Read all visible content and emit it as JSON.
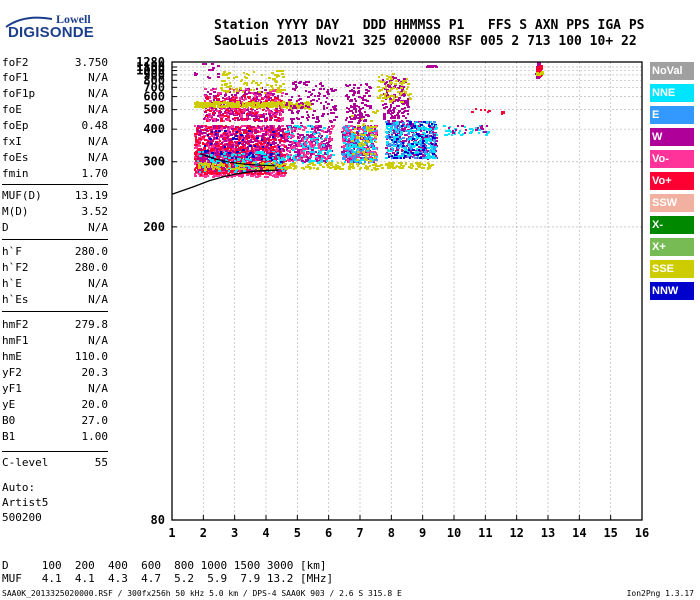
{
  "logo": {
    "line1": "Lowell",
    "line2": "DIGISONDE"
  },
  "header": {
    "labels": "Station YYYY DAY   DDD HHMMSS P1   FFS S AXN PPS IGA PS",
    "values": "SaoLuis 2013 Nov21 325 020000 RSF 005 2 713 100 10+ 22"
  },
  "params": [
    {
      "key": "foF2",
      "value": "3.750"
    },
    {
      "key": "foF1",
      "value": "N/A"
    },
    {
      "key": "foF1p",
      "value": "N/A"
    },
    {
      "key": "foE",
      "value": "N/A"
    },
    {
      "key": "foEp",
      "value": "0.48"
    },
    {
      "key": "fxI",
      "value": "N/A"
    },
    {
      "key": "foEs",
      "value": "N/A"
    },
    {
      "key": "fmin",
      "value": "1.70"
    },
    {
      "key": "MUF(D)",
      "value": "13.19"
    },
    {
      "key": "M(D)",
      "value": "3.52"
    },
    {
      "key": "D",
      "value": "N/A"
    },
    {
      "key": "h`F",
      "value": "280.0"
    },
    {
      "key": "h`F2",
      "value": "280.0"
    },
    {
      "key": "h`E",
      "value": "N/A"
    },
    {
      "key": "h`Es",
      "value": "N/A"
    },
    {
      "key": "hmF2",
      "value": "279.8"
    },
    {
      "key": "hmF1",
      "value": "N/A"
    },
    {
      "key": "hmE",
      "value": "110.0"
    },
    {
      "key": "yF2",
      "value": "20.3"
    },
    {
      "key": "yF1",
      "value": "N/A"
    },
    {
      "key": "yE",
      "value": "20.0"
    },
    {
      "key": "B0",
      "value": "27.0"
    },
    {
      "key": "B1",
      "value": "1.00"
    },
    {
      "key": "C-level",
      "value": "55"
    }
  ],
  "auto": {
    "line1": "Auto:",
    "line2": "Artist5",
    "line3": "500200"
  },
  "legend": [
    {
      "label": "NoVal",
      "color": "#a0a0a0"
    },
    {
      "label": "NNE",
      "color": "#00e5ff"
    },
    {
      "label": "E",
      "color": "#3399ff"
    },
    {
      "label": "W",
      "color": "#b0009a"
    },
    {
      "label": "Vo-",
      "color": "#ff3399"
    },
    {
      "label": "Vo+",
      "color": "#ff0033"
    },
    {
      "label": "SSW",
      "color": "#f2b0a0"
    },
    {
      "label": "X-",
      "color": "#008800"
    },
    {
      "label": "X+",
      "color": "#77bb55"
    },
    {
      "label": "SSE",
      "color": "#cccc00"
    },
    {
      "label": "NNW",
      "color": "#0000cc"
    }
  ],
  "footer": {
    "line1": "D     100  200  400  600  800 1000 1500 3000 [km]",
    "line2": "MUF   4.1  4.1  4.3  4.7  5.2  5.9  7.9 13.2 [MHz]"
  },
  "source": "SAA0K_2013325020000.RSF / 300fx256h 50 kHz 5.0 km / DPS-4 SAA0K 903 / 2.6 S 315.8 E",
  "version": "Ion2Png 1.3.17",
  "chart_data": {
    "type": "scatter",
    "x_ticks": [
      "1",
      "2",
      "3",
      "4",
      "5",
      "6",
      "7",
      "8",
      "9",
      "10",
      "11",
      "12",
      "13",
      "14",
      "15",
      "16"
    ],
    "y_ticks": [
      "80",
      "200",
      "300",
      "400",
      "500",
      "600",
      "700",
      "800",
      "900",
      "1000",
      "1100",
      "1280"
    ],
    "xlim": [
      1,
      16
    ],
    "ylim": [
      80,
      1280
    ],
    "grid": true,
    "y_scale": "reciprocal",
    "clusters": [
      {
        "color_ref": 4,
        "x": [
          1.7,
          4.6
        ],
        "y": [
          270,
          330
        ],
        "density": 700
      },
      {
        "color_ref": 5,
        "x": [
          1.7,
          4.6
        ],
        "y": [
          275,
          335
        ],
        "density": 500
      },
      {
        "color_ref": 3,
        "x": [
          1.8,
          4.5
        ],
        "y": [
          280,
          330
        ],
        "density": 250
      },
      {
        "color_ref": 1,
        "x": [
          1.8,
          4.6
        ],
        "y": [
          280,
          330
        ],
        "density": 150
      },
      {
        "color_ref": 9,
        "x": [
          1.8,
          9.3
        ],
        "y": [
          285,
          300
        ],
        "density": 260
      },
      {
        "color_ref": 4,
        "x": [
          1.7,
          4.6
        ],
        "y": [
          330,
          420
        ],
        "density": 400
      },
      {
        "color_ref": 5,
        "x": [
          1.7,
          4.6
        ],
        "y": [
          330,
          420
        ],
        "density": 260
      },
      {
        "color_ref": 3,
        "x": [
          1.8,
          4.6
        ],
        "y": [
          330,
          420
        ],
        "density": 160
      },
      {
        "color_ref": 10,
        "x": [
          2.0,
          4.5
        ],
        "y": [
          300,
          400
        ],
        "density": 60
      },
      {
        "color_ref": 3,
        "x": [
          2.0,
          4.5
        ],
        "y": [
          440,
          700
        ],
        "density": 340
      },
      {
        "color_ref": 4,
        "x": [
          2.0,
          4.5
        ],
        "y": [
          440,
          700
        ],
        "density": 180
      },
      {
        "color_ref": 5,
        "x": [
          2.0,
          4.5
        ],
        "y": [
          440,
          620
        ],
        "density": 90
      },
      {
        "color_ref": 9,
        "x": [
          1.7,
          4.8
        ],
        "y": [
          520,
          560
        ],
        "density": 320
      },
      {
        "color_ref": 9,
        "x": [
          2.5,
          4.6
        ],
        "y": [
          640,
          1020
        ],
        "density": 90
      },
      {
        "color_ref": 9,
        "x": [
          4.6,
          5.4
        ],
        "y": [
          510,
          560
        ],
        "density": 60
      },
      {
        "color_ref": 3,
        "x": [
          4.6,
          6.1
        ],
        "y": [
          300,
          420
        ],
        "density": 220
      },
      {
        "color_ref": 1,
        "x": [
          4.6,
          6.1
        ],
        "y": [
          300,
          420
        ],
        "density": 120
      },
      {
        "color_ref": 4,
        "x": [
          4.6,
          6.1
        ],
        "y": [
          300,
          420
        ],
        "density": 100
      },
      {
        "color_ref": 3,
        "x": [
          4.6,
          6.2
        ],
        "y": [
          430,
          800
        ],
        "density": 120
      },
      {
        "color_ref": 3,
        "x": [
          6.4,
          7.5
        ],
        "y": [
          300,
          420
        ],
        "density": 240
      },
      {
        "color_ref": 4,
        "x": [
          6.4,
          7.5
        ],
        "y": [
          300,
          420
        ],
        "density": 140
      },
      {
        "color_ref": 2,
        "x": [
          6.4,
          7.5
        ],
        "y": [
          300,
          420
        ],
        "density": 100
      },
      {
        "color_ref": 1,
        "x": [
          6.4,
          7.5
        ],
        "y": [
          300,
          420
        ],
        "density": 80
      },
      {
        "color_ref": 3,
        "x": [
          6.5,
          7.3
        ],
        "y": [
          430,
          760
        ],
        "density": 110
      },
      {
        "color_ref": 9,
        "x": [
          6.7,
          7.5
        ],
        "y": [
          290,
          500
        ],
        "density": 60
      },
      {
        "color_ref": 3,
        "x": [
          7.8,
          9.4
        ],
        "y": [
          310,
          440
        ],
        "density": 260
      },
      {
        "color_ref": 2,
        "x": [
          7.8,
          9.4
        ],
        "y": [
          310,
          440
        ],
        "density": 160
      },
      {
        "color_ref": 1,
        "x": [
          7.8,
          9.4
        ],
        "y": [
          310,
          440
        ],
        "density": 160
      },
      {
        "color_ref": 10,
        "x": [
          7.8,
          9.4
        ],
        "y": [
          310,
          440
        ],
        "density": 60
      },
      {
        "color_ref": 3,
        "x": [
          7.7,
          8.5
        ],
        "y": [
          440,
          880
        ],
        "density": 140
      },
      {
        "color_ref": 9,
        "x": [
          7.5,
          8.6
        ],
        "y": [
          560,
          940
        ],
        "density": 80
      },
      {
        "color_ref": 1,
        "x": [
          9.3,
          11.1
        ],
        "y": [
          380,
          420
        ],
        "density": 40
      },
      {
        "color_ref": 3,
        "x": [
          9.3,
          11.1
        ],
        "y": [
          380,
          420
        ],
        "density": 20
      },
      {
        "color_ref": 5,
        "x": [
          10.3,
          11.6
        ],
        "y": [
          480,
          510
        ],
        "density": 10
      },
      {
        "color_ref": 3,
        "x": [
          9.1,
          9.4
        ],
        "y": [
          1130,
          1165
        ],
        "density": 16
      },
      {
        "color_ref": 3,
        "x": [
          12.6,
          12.7
        ],
        "y": [
          840,
          1280
        ],
        "density": 50
      },
      {
        "color_ref": 5,
        "x": [
          12.6,
          12.75
        ],
        "y": [
          900,
          1200
        ],
        "density": 30
      },
      {
        "color_ref": 9,
        "x": [
          12.6,
          12.8
        ],
        "y": [
          920,
          1000
        ],
        "density": 14
      },
      {
        "color_ref": 3,
        "x": [
          1.7,
          2.6
        ],
        "y": [
          850,
          1280
        ],
        "density": 14
      }
    ],
    "profile_curve": {
      "x": [
        1.0,
        1.7,
        2.2,
        2.7,
        3.2,
        3.7,
        4.4
      ],
      "y": [
        240,
        252,
        262,
        270,
        276,
        280,
        282
      ]
    },
    "trace_curve": {
      "x": [
        1.9,
        2.4,
        2.9,
        3.4,
        3.9,
        4.3
      ],
      "y": [
        320,
        306,
        298,
        294,
        292,
        291
      ]
    }
  }
}
